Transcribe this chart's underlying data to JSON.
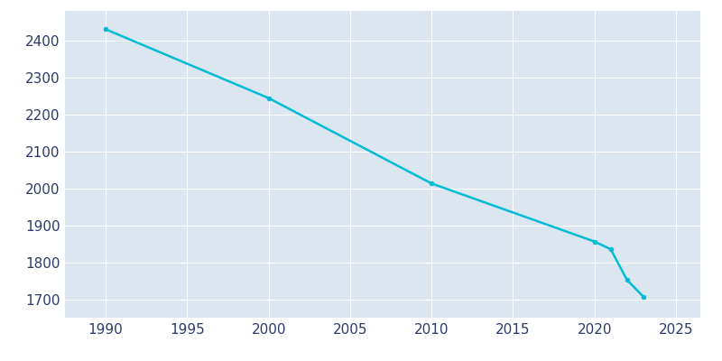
{
  "years": [
    1990,
    2000,
    2010,
    2020,
    2021,
    2022,
    2023
  ],
  "population": [
    2430,
    2244,
    2013,
    1856,
    1835,
    1752,
    1707
  ],
  "line_color": "#00bcd4",
  "marker": "o",
  "marker_size": 4,
  "plot_bg_color": "#dce6f1",
  "fig_bg_color": "#ffffff",
  "grid_color": "#ffffff",
  "ylim": [
    1650,
    2480
  ],
  "xlim": [
    1987.5,
    2026.5
  ],
  "yticks": [
    1700,
    1800,
    1900,
    2000,
    2100,
    2200,
    2300,
    2400
  ],
  "xticks": [
    1990,
    1995,
    2000,
    2005,
    2010,
    2015,
    2020,
    2025
  ],
  "tick_label_color": "#2d3a6b",
  "tick_fontsize": 11,
  "linewidth": 1.8
}
